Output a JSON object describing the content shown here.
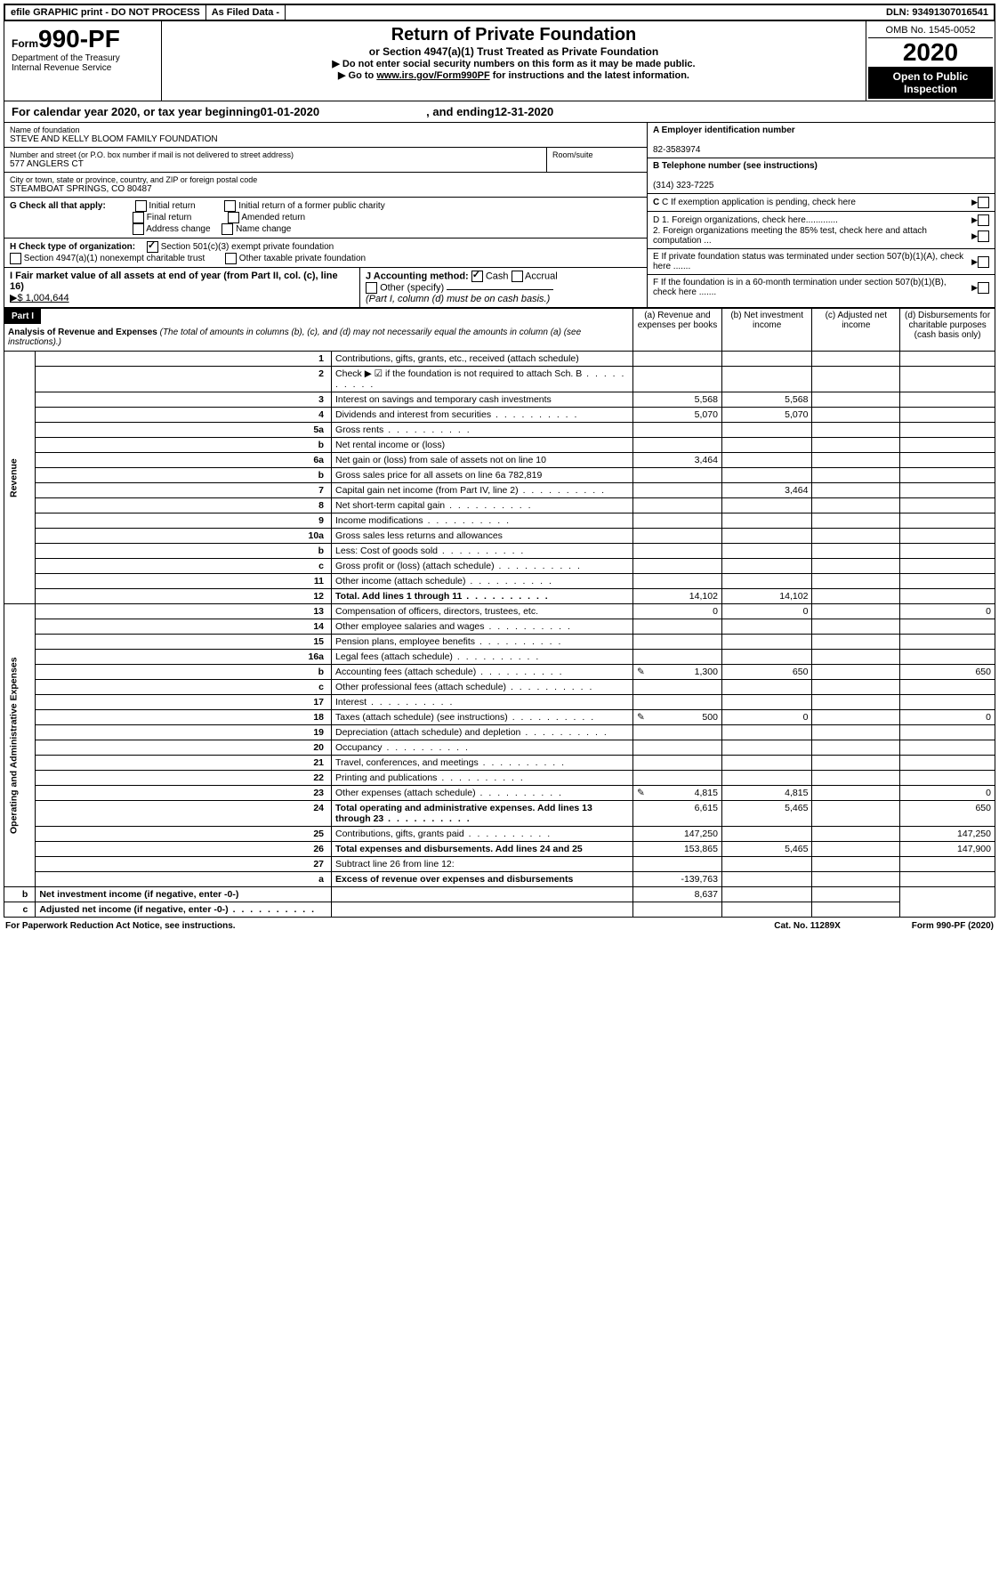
{
  "topbar": {
    "efile": "efile GRAPHIC print - DO NOT PROCESS",
    "asfiled": "As Filed Data -",
    "dln": "DLN: 93491307016541"
  },
  "header": {
    "form_prefix": "Form",
    "form_number": "990-PF",
    "dept1": "Department of the Treasury",
    "dept2": "Internal Revenue Service",
    "title": "Return of Private Foundation",
    "subtitle": "or Section 4947(a)(1) Trust Treated as Private Foundation",
    "instr1": "▶ Do not enter social security numbers on this form as it may be made public.",
    "instr2_pre": "▶ Go to ",
    "instr2_link": "www.irs.gov/Form990PF",
    "instr2_post": " for instructions and the latest information.",
    "omb": "OMB No. 1545-0052",
    "year": "2020",
    "open_public": "Open to Public Inspection"
  },
  "calyear": {
    "text_pre": "For calendar year 2020, or tax year beginning ",
    "begin": "01-01-2020",
    "text_mid": ", and ending ",
    "end": "12-31-2020"
  },
  "info": {
    "name_label": "Name of foundation",
    "name": "STEVE AND KELLY BLOOM FAMILY FOUNDATION",
    "addr_label": "Number and street (or P.O. box number if mail is not delivered to street address)",
    "addr": "577 ANGLERS CT",
    "room_label": "Room/suite",
    "city_label": "City or town, state or province, country, and ZIP or foreign postal code",
    "city": "STEAMBOAT SPRINGS, CO  80487",
    "A_label": "A Employer identification number",
    "A_val": "82-3583974",
    "B_label": "B Telephone number (see instructions)",
    "B_val": "(314) 323-7225",
    "C_label": "C If exemption application is pending, check here",
    "G_label": "G Check all that apply:",
    "G_opts": [
      "Initial return",
      "Initial return of a former public charity",
      "Final return",
      "Amended return",
      "Address change",
      "Name change"
    ],
    "D1": "D 1. Foreign organizations, check here.............",
    "D2": "2. Foreign organizations meeting the 85% test, check here and attach computation ...",
    "H_label": "H Check type of organization:",
    "H_opt1": "Section 501(c)(3) exempt private foundation",
    "H_opt2": "Section 4947(a)(1) nonexempt charitable trust",
    "H_opt3": "Other taxable private foundation",
    "E_label": "E  If private foundation status was terminated under section 507(b)(1)(A), check here .......",
    "I_label": "I Fair market value of all assets at end of year (from Part II, col. (c), line 16)",
    "I_val": "▶$  1,004,644",
    "J_label": "J Accounting method:",
    "J_cash": "Cash",
    "J_accrual": "Accrual",
    "J_other": "Other (specify)",
    "J_note": "(Part I, column (d) must be on cash basis.)",
    "F_label": "F  If the foundation is in a 60-month termination under section 507(b)(1)(B), check here ......."
  },
  "part1": {
    "label": "Part I",
    "heading": "Analysis of Revenue and Expenses",
    "heading_note": " (The total of amounts in columns (b), (c), and (d) may not necessarily equal the amounts in column (a) (see instructions).)",
    "col_a": "(a)  Revenue and expenses per books",
    "col_b": "(b)  Net investment income",
    "col_c": "(c)  Adjusted net income",
    "col_d": "(d)  Disbursements for charitable purposes (cash basis only)"
  },
  "sections": {
    "revenue": "Revenue",
    "expenses": "Operating and Administrative Expenses"
  },
  "rows": [
    {
      "n": "1",
      "d": "Contributions, gifts, grants, etc., received (attach schedule)"
    },
    {
      "n": "2",
      "d": "Check ▶ ☑ if the foundation is not required to attach Sch. B",
      "dots": true
    },
    {
      "n": "3",
      "d": "Interest on savings and temporary cash investments",
      "a": "5,568",
      "b": "5,568"
    },
    {
      "n": "4",
      "d": "Dividends and interest from securities",
      "dots": true,
      "a": "5,070",
      "b": "5,070"
    },
    {
      "n": "5a",
      "d": "Gross rents",
      "dots": true
    },
    {
      "n": "b",
      "d": "Net rental income or (loss)"
    },
    {
      "n": "6a",
      "d": "Net gain or (loss) from sale of assets not on line 10",
      "a": "3,464"
    },
    {
      "n": "b",
      "d": "Gross sales price for all assets on line 6a            782,819"
    },
    {
      "n": "7",
      "d": "Capital gain net income (from Part IV, line 2)",
      "dots": true,
      "b": "3,464"
    },
    {
      "n": "8",
      "d": "Net short-term capital gain",
      "dots": true
    },
    {
      "n": "9",
      "d": "Income modifications",
      "dots": true
    },
    {
      "n": "10a",
      "d": "Gross sales less returns and allowances"
    },
    {
      "n": "b",
      "d": "Less: Cost of goods sold",
      "dots": true
    },
    {
      "n": "c",
      "d": "Gross profit or (loss) (attach schedule)",
      "dots": true
    },
    {
      "n": "11",
      "d": "Other income (attach schedule)",
      "dots": true
    },
    {
      "n": "12",
      "d": "Total. Add lines 1 through 11",
      "dots": true,
      "bold": true,
      "a": "14,102",
      "b": "14,102"
    },
    {
      "n": "13",
      "d": "Compensation of officers, directors, trustees, etc.",
      "a": "0",
      "b": "0",
      "dd": "0"
    },
    {
      "n": "14",
      "d": "Other employee salaries and wages",
      "dots": true
    },
    {
      "n": "15",
      "d": "Pension plans, employee benefits",
      "dots": true
    },
    {
      "n": "16a",
      "d": "Legal fees (attach schedule)",
      "dots": true
    },
    {
      "n": "b",
      "d": "Accounting fees (attach schedule)",
      "dots": true,
      "icon": true,
      "a": "1,300",
      "b": "650",
      "dd": "650"
    },
    {
      "n": "c",
      "d": "Other professional fees (attach schedule)",
      "dots": true
    },
    {
      "n": "17",
      "d": "Interest",
      "dots": true
    },
    {
      "n": "18",
      "d": "Taxes (attach schedule) (see instructions)",
      "dots": true,
      "icon": true,
      "a": "500",
      "b": "0",
      "dd": "0"
    },
    {
      "n": "19",
      "d": "Depreciation (attach schedule) and depletion",
      "dots": true
    },
    {
      "n": "20",
      "d": "Occupancy",
      "dots": true
    },
    {
      "n": "21",
      "d": "Travel, conferences, and meetings",
      "dots": true
    },
    {
      "n": "22",
      "d": "Printing and publications",
      "dots": true
    },
    {
      "n": "23",
      "d": "Other expenses (attach schedule)",
      "dots": true,
      "icon": true,
      "a": "4,815",
      "b": "4,815",
      "dd": "0"
    },
    {
      "n": "24",
      "d": "Total operating and administrative expenses. Add lines 13 through 23",
      "dots": true,
      "bold": true,
      "a": "6,615",
      "b": "5,465",
      "dd": "650"
    },
    {
      "n": "25",
      "d": "Contributions, gifts, grants paid",
      "dots": true,
      "a": "147,250",
      "dd": "147,250"
    },
    {
      "n": "26",
      "d": "Total expenses and disbursements. Add lines 24 and 25",
      "bold": true,
      "a": "153,865",
      "b": "5,465",
      "dd": "147,900"
    },
    {
      "n": "27",
      "d": "Subtract line 26 from line 12:"
    },
    {
      "n": "a",
      "d": "Excess of revenue over expenses and disbursements",
      "bold": true,
      "a": "-139,763"
    },
    {
      "n": "b",
      "d": "Net investment income (if negative, enter -0-)",
      "bold": true,
      "b": "8,637"
    },
    {
      "n": "c",
      "d": "Adjusted net income (if negative, enter -0-)",
      "dots": true,
      "bold": true
    }
  ],
  "footer": {
    "left": "For Paperwork Reduction Act Notice, see instructions.",
    "mid": "Cat. No. 11289X",
    "right": "Form 990-PF (2020)"
  }
}
